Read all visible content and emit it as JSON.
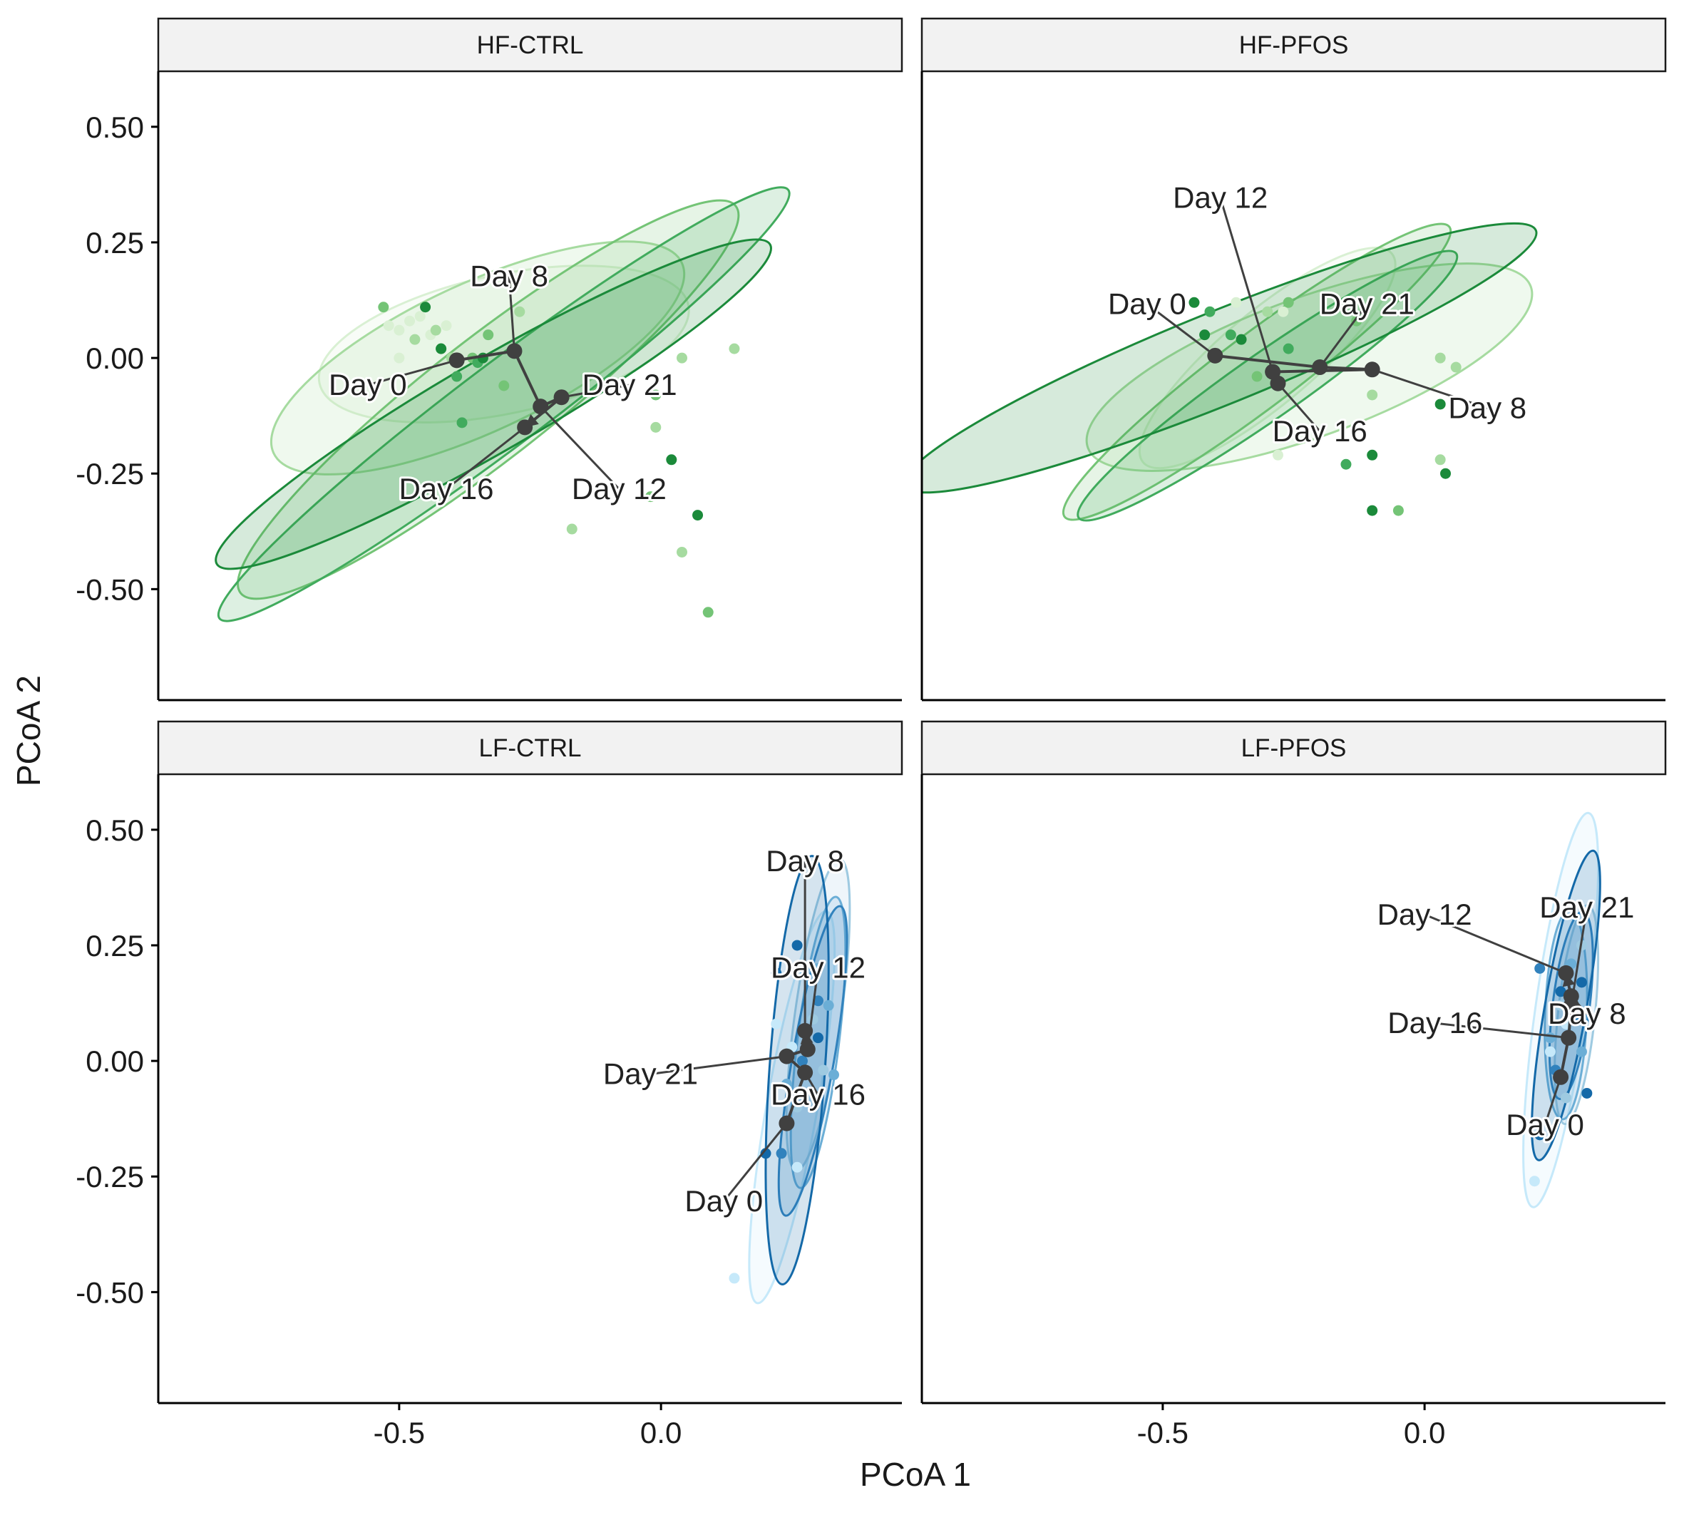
{
  "chart_data": {
    "type": "scatter",
    "xlabel": "PCoA 1",
    "ylabel": "PCoA 2",
    "xlim": [
      -0.96,
      0.46
    ],
    "ylim": [
      -0.74,
      0.62
    ],
    "x_ticks": [
      {
        "value": -0.5,
        "label": "-0.5"
      },
      {
        "value": 0.0,
        "label": "0.0"
      }
    ],
    "y_ticks": [
      {
        "value": 0.5,
        "label": "0.50"
      },
      {
        "value": 0.25,
        "label": "0.25"
      },
      {
        "value": 0.0,
        "label": "0.00"
      },
      {
        "value": -0.25,
        "label": "-0.25"
      },
      {
        "value": -0.5,
        "label": "-0.50"
      }
    ],
    "facet_layout": {
      "rows": 2,
      "cols": 2,
      "shared_axes": true
    },
    "day_colors": {
      "HF": {
        "Day 0": "#d9f0d3",
        "Day 8": "#a6dba0",
        "Day 12": "#74c476",
        "Day 16": "#41ab5d",
        "Day 21": "#1b8a3a"
      },
      "LF": {
        "Day 0": "#c6e9fa",
        "Day 8": "#9ecae1",
        "Day 12": "#6baed6",
        "Day 16": "#3182bd",
        "Day 21": "#1469a8"
      }
    },
    "centroid_color": "#404040",
    "panels": [
      {
        "title": "HF-CTRL",
        "palette": "HF",
        "centroids": [
          {
            "day": "Day 0",
            "x": -0.39,
            "y": -0.005
          },
          {
            "day": "Day 8",
            "x": -0.28,
            "y": 0.015
          },
          {
            "day": "Day 12",
            "x": -0.23,
            "y": -0.105
          },
          {
            "day": "Day 16",
            "x": -0.26,
            "y": -0.15
          },
          {
            "day": "Day 21",
            "x": -0.19,
            "y": -0.085
          }
        ],
        "path_order": [
          "Day 0",
          "Day 8",
          "Day 12",
          "Day 21",
          "Day 16"
        ],
        "labels": [
          {
            "day": "Day 0",
            "text": "Day 0",
            "x": -0.56,
            "y": -0.08
          },
          {
            "day": "Day 8",
            "text": "Day 8",
            "x": -0.29,
            "y": 0.155
          },
          {
            "day": "Day 12",
            "text": "Day 12",
            "x": -0.08,
            "y": -0.305
          },
          {
            "day": "Day 16",
            "text": "Day 16",
            "x": -0.41,
            "y": -0.305
          },
          {
            "day": "Day 21",
            "text": "Day 21",
            "x": -0.06,
            "y": -0.08
          }
        ],
        "ellipses": [
          {
            "day": "Day 0",
            "cx": -0.3,
            "cy": 0.03,
            "rx": 0.36,
            "ry": 0.15,
            "angle": -12
          },
          {
            "day": "Day 8",
            "cx": -0.35,
            "cy": 0.0,
            "rx": 0.43,
            "ry": 0.16,
            "angle": -25
          },
          {
            "day": "Day 12",
            "cx": -0.33,
            "cy": -0.09,
            "rx": 0.6,
            "ry": 0.13,
            "angle": -38
          },
          {
            "day": "Day 16",
            "cx": -0.3,
            "cy": -0.1,
            "rx": 0.68,
            "ry": 0.09,
            "angle": -37
          },
          {
            "day": "Day 21",
            "cx": -0.32,
            "cy": -0.1,
            "rx": 0.61,
            "ry": 0.1,
            "angle": -30
          }
        ],
        "points": [
          {
            "day": "Day 0",
            "x": -0.52,
            "y": 0.07
          },
          {
            "day": "Day 0",
            "x": -0.48,
            "y": 0.08
          },
          {
            "day": "Day 0",
            "x": -0.46,
            "y": 0.09
          },
          {
            "day": "Day 0",
            "x": -0.5,
            "y": 0.06
          },
          {
            "day": "Day 0",
            "x": -0.44,
            "y": 0.05
          },
          {
            "day": "Day 0",
            "x": -0.41,
            "y": 0.07
          },
          {
            "day": "Day 0",
            "x": -0.5,
            "y": 0.0
          },
          {
            "day": "Day 8",
            "x": -0.43,
            "y": 0.06
          },
          {
            "day": "Day 8",
            "x": -0.27,
            "y": 0.1
          },
          {
            "day": "Day 8",
            "x": 0.04,
            "y": 0.0
          },
          {
            "day": "Day 8",
            "x": 0.14,
            "y": 0.02
          },
          {
            "day": "Day 8",
            "x": -0.01,
            "y": -0.15
          },
          {
            "day": "Day 8",
            "x": 0.04,
            "y": -0.42
          },
          {
            "day": "Day 8",
            "x": -0.17,
            "y": -0.37
          },
          {
            "day": "Day 8",
            "x": -0.4,
            "y": 0.0
          },
          {
            "day": "Day 8",
            "x": -0.47,
            "y": 0.04
          },
          {
            "day": "Day 12",
            "x": -0.53,
            "y": 0.11
          },
          {
            "day": "Day 12",
            "x": -0.33,
            "y": 0.05
          },
          {
            "day": "Day 12",
            "x": -0.3,
            "y": -0.06
          },
          {
            "day": "Day 12",
            "x": -0.01,
            "y": -0.08
          },
          {
            "day": "Day 12",
            "x": 0.09,
            "y": -0.55
          },
          {
            "day": "Day 12",
            "x": -0.02,
            "y": -0.3
          },
          {
            "day": "Day 12",
            "x": -0.36,
            "y": 0.0
          },
          {
            "day": "Day 16",
            "x": -0.39,
            "y": -0.04
          },
          {
            "day": "Day 16",
            "x": -0.38,
            "y": -0.14
          },
          {
            "day": "Day 16",
            "x": -0.35,
            "y": -0.01
          },
          {
            "day": "Day 16",
            "x": -0.42,
            "y": 0.02
          },
          {
            "day": "Day 21",
            "x": -0.45,
            "y": 0.11
          },
          {
            "day": "Day 21",
            "x": -0.42,
            "y": 0.02
          },
          {
            "day": "Day 21",
            "x": 0.02,
            "y": -0.22
          },
          {
            "day": "Day 21",
            "x": 0.07,
            "y": -0.34
          },
          {
            "day": "Day 21",
            "x": -0.34,
            "y": 0.0
          }
        ]
      },
      {
        "title": "HF-PFOS",
        "palette": "HF",
        "centroids": [
          {
            "day": "Day 0",
            "x": -0.4,
            "y": 0.005
          },
          {
            "day": "Day 8",
            "x": -0.1,
            "y": -0.025
          },
          {
            "day": "Day 12",
            "x": -0.29,
            "y": -0.03
          },
          {
            "day": "Day 16",
            "x": -0.28,
            "y": -0.055
          },
          {
            "day": "Day 21",
            "x": -0.2,
            "y": -0.02
          }
        ],
        "path_order": [
          "Day 0",
          "Day 21",
          "Day 8",
          "Day 12",
          "Day 16"
        ],
        "labels": [
          {
            "day": "Day 0",
            "text": "Day 0",
            "x": -0.53,
            "y": 0.095
          },
          {
            "day": "Day 8",
            "text": "Day 8",
            "x": 0.12,
            "y": -0.13
          },
          {
            "day": "Day 12",
            "text": "Day 12",
            "x": -0.39,
            "y": 0.325
          },
          {
            "day": "Day 16",
            "text": "Day 16",
            "x": -0.2,
            "y": -0.18
          },
          {
            "day": "Day 21",
            "text": "Day 21",
            "x": -0.11,
            "y": 0.095
          }
        ],
        "ellipses": [
          {
            "day": "Day 0",
            "cx": -0.3,
            "cy": 0.0,
            "rx": 0.31,
            "ry": 0.1,
            "angle": -40
          },
          {
            "day": "Day 8",
            "cx": -0.22,
            "cy": -0.02,
            "rx": 0.45,
            "ry": 0.15,
            "angle": -20
          },
          {
            "day": "Day 12",
            "cx": -0.32,
            "cy": -0.03,
            "rx": 0.46,
            "ry": 0.08,
            "angle": -37
          },
          {
            "day": "Day 16",
            "cx": -0.3,
            "cy": -0.06,
            "rx": 0.44,
            "ry": 0.07,
            "angle": -35
          },
          {
            "day": "Day 21",
            "cx": -0.39,
            "cy": 0.0,
            "rx": 0.65,
            "ry": 0.1,
            "angle": -22
          }
        ],
        "points": [
          {
            "day": "Day 0",
            "x": -0.28,
            "y": -0.21
          },
          {
            "day": "Day 0",
            "x": -0.36,
            "y": 0.12
          },
          {
            "day": "Day 0",
            "x": -0.27,
            "y": 0.1
          },
          {
            "day": "Day 8",
            "x": 0.03,
            "y": 0.0
          },
          {
            "day": "Day 8",
            "x": 0.06,
            "y": -0.02
          },
          {
            "day": "Day 8",
            "x": 0.03,
            "y": -0.22
          },
          {
            "day": "Day 8",
            "x": -0.1,
            "y": -0.08
          },
          {
            "day": "Day 8",
            "x": -0.3,
            "y": 0.1
          },
          {
            "day": "Day 12",
            "x": -0.26,
            "y": 0.12
          },
          {
            "day": "Day 12",
            "x": -0.32,
            "y": -0.04
          },
          {
            "day": "Day 12",
            "x": -0.13,
            "y": 0.08
          },
          {
            "day": "Day 12",
            "x": -0.05,
            "y": -0.33
          },
          {
            "day": "Day 16",
            "x": -0.37,
            "y": 0.05
          },
          {
            "day": "Day 16",
            "x": -0.41,
            "y": 0.1
          },
          {
            "day": "Day 16",
            "x": -0.15,
            "y": -0.23
          },
          {
            "day": "Day 16",
            "x": -0.26,
            "y": 0.02
          },
          {
            "day": "Day 21",
            "x": -0.44,
            "y": 0.12
          },
          {
            "day": "Day 21",
            "x": -0.42,
            "y": 0.05
          },
          {
            "day": "Day 21",
            "x": 0.03,
            "y": -0.1
          },
          {
            "day": "Day 21",
            "x": 0.04,
            "y": -0.25
          },
          {
            "day": "Day 21",
            "x": -0.1,
            "y": -0.33
          },
          {
            "day": "Day 21",
            "x": -0.1,
            "y": -0.21
          },
          {
            "day": "Day 21",
            "x": -0.35,
            "y": 0.04
          }
        ]
      },
      {
        "title": "LF-CTRL",
        "palette": "LF",
        "centroids": [
          {
            "day": "Day 0",
            "x": 0.24,
            "y": -0.135
          },
          {
            "day": "Day 8",
            "x": 0.275,
            "y": 0.065
          },
          {
            "day": "Day 12",
            "x": 0.28,
            "y": 0.025
          },
          {
            "day": "Day 16",
            "x": 0.275,
            "y": -0.025
          },
          {
            "day": "Day 21",
            "x": 0.24,
            "y": 0.01
          }
        ],
        "path_order": [
          "Day 0",
          "Day 16",
          "Day 21",
          "Day 12",
          "Day 8"
        ],
        "labels": [
          {
            "day": "Day 0",
            "text": "Day 0",
            "x": 0.12,
            "y": -0.325
          },
          {
            "day": "Day 8",
            "text": "Day 8",
            "x": 0.275,
            "y": 0.41
          },
          {
            "day": "Day 12",
            "text": "Day 12",
            "x": 0.3,
            "y": 0.18
          },
          {
            "day": "Day 16",
            "text": "Day 16",
            "x": 0.3,
            "y": -0.095
          },
          {
            "day": "Day 21",
            "text": "Day 21",
            "x": -0.02,
            "y": -0.05
          }
        ],
        "ellipses": [
          {
            "day": "Day 0",
            "cx": 0.25,
            "cy": -0.1,
            "rx": 0.38,
            "ry": 0.055,
            "angle": -80
          },
          {
            "day": "Day 8",
            "cx": 0.3,
            "cy": 0.1,
            "rx": 0.3,
            "ry": 0.05,
            "angle": -82
          },
          {
            "day": "Day 12",
            "cx": 0.3,
            "cy": 0.04,
            "rx": 0.28,
            "ry": 0.045,
            "angle": -83
          },
          {
            "day": "Day 16",
            "cx": 0.29,
            "cy": 0.0,
            "rx": 0.3,
            "ry": 0.045,
            "angle": -80
          },
          {
            "day": "Day 21",
            "cx": 0.26,
            "cy": -0.02,
            "rx": 0.41,
            "ry": 0.06,
            "angle": -86
          }
        ],
        "points": [
          {
            "day": "Day 0",
            "x": 0.14,
            "y": -0.47
          },
          {
            "day": "Day 0",
            "x": 0.25,
            "y": 0.03
          },
          {
            "day": "Day 0",
            "x": 0.22,
            "y": 0.08
          },
          {
            "day": "Day 0",
            "x": 0.26,
            "y": -0.23
          },
          {
            "day": "Day 8",
            "x": 0.29,
            "y": 0.09
          },
          {
            "day": "Day 8",
            "x": 0.31,
            "y": -0.02
          },
          {
            "day": "Day 8",
            "x": 0.26,
            "y": -0.1
          },
          {
            "day": "Day 12",
            "x": 0.32,
            "y": 0.12
          },
          {
            "day": "Day 12",
            "x": 0.3,
            "y": 0.2
          },
          {
            "day": "Day 12",
            "x": 0.24,
            "y": -0.05
          },
          {
            "day": "Day 12",
            "x": 0.33,
            "y": -0.03
          },
          {
            "day": "Day 16",
            "x": 0.3,
            "y": 0.13
          },
          {
            "day": "Day 16",
            "x": 0.23,
            "y": -0.2
          },
          {
            "day": "Day 16",
            "x": 0.27,
            "y": 0.0
          },
          {
            "day": "Day 21",
            "x": 0.26,
            "y": 0.25
          },
          {
            "day": "Day 21",
            "x": 0.22,
            "y": 0.19
          },
          {
            "day": "Day 21",
            "x": 0.2,
            "y": -0.2
          },
          {
            "day": "Day 21",
            "x": 0.3,
            "y": 0.05
          }
        ]
      },
      {
        "title": "LF-PFOS",
        "palette": "LF",
        "centroids": [
          {
            "day": "Day 0",
            "x": 0.26,
            "y": -0.035
          },
          {
            "day": "Day 8",
            "x": 0.28,
            "y": 0.14
          },
          {
            "day": "Day 12",
            "x": 0.27,
            "y": 0.19
          },
          {
            "day": "Day 16",
            "x": 0.275,
            "y": 0.05
          },
          {
            "day": "Day 21",
            "x": 0.28,
            "y": 0.12
          }
        ],
        "path_order": [
          "Day 0",
          "Day 16",
          "Day 21",
          "Day 8",
          "Day 12"
        ],
        "labels": [
          {
            "day": "Day 0",
            "text": "Day 0",
            "x": 0.23,
            "y": -0.16
          },
          {
            "day": "Day 8",
            "text": "Day 8",
            "x": 0.31,
            "y": 0.08
          },
          {
            "day": "Day 12",
            "text": "Day 12",
            "x": 0.0,
            "y": 0.295
          },
          {
            "day": "Day 16",
            "text": "Day 16",
            "x": 0.02,
            "y": 0.06
          },
          {
            "day": "Day 21",
            "text": "Day 21",
            "x": 0.31,
            "y": 0.31
          }
        ],
        "ellipses": [
          {
            "day": "Day 0",
            "cx": 0.26,
            "cy": 0.11,
            "rx": 0.38,
            "ry": 0.055,
            "angle": -82
          },
          {
            "day": "Day 8",
            "cx": 0.29,
            "cy": 0.1,
            "rx": 0.21,
            "ry": 0.04,
            "angle": -84
          },
          {
            "day": "Day 12",
            "cx": 0.27,
            "cy": 0.1,
            "rx": 0.2,
            "ry": 0.045,
            "angle": -88
          },
          {
            "day": "Day 16",
            "cx": 0.28,
            "cy": 0.12,
            "rx": 0.18,
            "ry": 0.04,
            "angle": -83
          },
          {
            "day": "Day 21",
            "cx": 0.27,
            "cy": 0.12,
            "rx": 0.3,
            "ry": 0.045,
            "angle": -80
          }
        ],
        "points": [
          {
            "day": "Day 0",
            "x": 0.21,
            "y": -0.26
          },
          {
            "day": "Day 0",
            "x": 0.27,
            "y": 0.08
          },
          {
            "day": "Day 0",
            "x": 0.24,
            "y": 0.02
          },
          {
            "day": "Day 8",
            "x": 0.3,
            "y": 0.25
          },
          {
            "day": "Day 8",
            "x": 0.26,
            "y": 0.12
          },
          {
            "day": "Day 8",
            "x": 0.27,
            "y": -0.08
          },
          {
            "day": "Day 12",
            "x": 0.28,
            "y": 0.21
          },
          {
            "day": "Day 12",
            "x": 0.24,
            "y": 0.05
          },
          {
            "day": "Day 12",
            "x": 0.3,
            "y": 0.02
          },
          {
            "day": "Day 16",
            "x": 0.22,
            "y": 0.2
          },
          {
            "day": "Day 16",
            "x": 0.29,
            "y": 0.1
          },
          {
            "day": "Day 16",
            "x": 0.25,
            "y": -0.02
          },
          {
            "day": "Day 21",
            "x": 0.22,
            "y": -0.16
          },
          {
            "day": "Day 21",
            "x": 0.31,
            "y": -0.07
          },
          {
            "day": "Day 21",
            "x": 0.3,
            "y": 0.17
          },
          {
            "day": "Day 21",
            "x": 0.26,
            "y": 0.15
          }
        ]
      }
    ]
  }
}
